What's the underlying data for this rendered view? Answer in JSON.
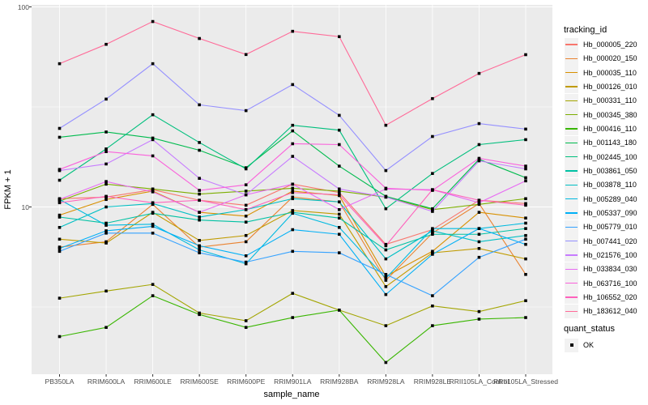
{
  "chart_data": {
    "type": "line",
    "title": "",
    "xlabel": "sample_name",
    "ylabel": "FPKM + 1",
    "y_scale": "log10",
    "ylim": [
      1.45,
      102
    ],
    "y_axis_ticks": [
      "100",
      "10"
    ],
    "grid": true,
    "panel_bg": "#EBEBEB",
    "gridline_color": "#FFFFFF",
    "point_marker": "black-square",
    "point_color": "#000000",
    "legend_position": "right",
    "categories": [
      "PB350LA",
      "RRIM600LA",
      "RRIM600LE",
      "RRIM600SE",
      "RRIM600PE",
      "RRIM901LA",
      "RRIM928BA",
      "RRIM928LA",
      "RRIM928LE",
      "RRII105LA_Control",
      "RRII105LA_Stressed"
    ],
    "legend": {
      "title": "tracking_id"
    },
    "quant_status": {
      "title": "quant_status",
      "items": [
        {
          "label": "OK",
          "marker": "black-square"
        }
      ]
    },
    "series": [
      {
        "name": "Hb_000005_220",
        "color": "#F8766D",
        "values": [
          11.0,
          11.2,
          12.2,
          10.8,
          10.2,
          13.0,
          11.8,
          6.5,
          7.7,
          10.8,
          10.4
        ]
      },
      {
        "name": "Hb_000020_150",
        "color": "#EA8331",
        "values": [
          6.3,
          6.7,
          10.3,
          6.3,
          6.7,
          11.2,
          10.6,
          4.3,
          7.4,
          10.4,
          4.6
        ]
      },
      {
        "name": "Hb_000035_110",
        "color": "#D89000",
        "values": [
          9.1,
          10.9,
          12.0,
          9.4,
          9.0,
          12.0,
          11.4,
          4.5,
          6.0,
          9.4,
          8.8
        ]
      },
      {
        "name": "Hb_000126_010",
        "color": "#C09B00",
        "values": [
          6.9,
          6.6,
          9.4,
          6.8,
          7.2,
          9.6,
          9.2,
          4.0,
          5.9,
          6.2,
          5.5
        ]
      },
      {
        "name": "Hb_000331_110",
        "color": "#A3A500",
        "values": [
          3.5,
          3.8,
          4.1,
          2.95,
          2.7,
          3.7,
          3.05,
          2.55,
          3.2,
          3.0,
          3.4
        ]
      },
      {
        "name": "Hb_000345_380",
        "color": "#7CAE00",
        "values": [
          10.7,
          13.0,
          12.3,
          11.6,
          12.0,
          12.4,
          12.0,
          11.2,
          9.7,
          10.3,
          11.0
        ]
      },
      {
        "name": "Hb_000416_110",
        "color": "#39B600",
        "values": [
          2.25,
          2.5,
          3.6,
          2.9,
          2.5,
          2.8,
          3.05,
          1.67,
          2.55,
          2.75,
          2.8
        ]
      },
      {
        "name": "Hb_001143_180",
        "color": "#00BB4E",
        "values": [
          22.3,
          23.7,
          22.1,
          19.2,
          15.7,
          24.0,
          16.0,
          11.3,
          9.8,
          17.3,
          14.0
        ]
      },
      {
        "name": "Hb_002445_100",
        "color": "#00BF7D",
        "values": [
          13.6,
          19.5,
          28.9,
          21.0,
          15.5,
          25.6,
          24.2,
          9.8,
          14.7,
          20.5,
          21.7
        ]
      },
      {
        "name": "Hb_003861_050",
        "color": "#00C1A3",
        "values": [
          8.9,
          8.3,
          9.3,
          8.6,
          8.4,
          9.4,
          8.8,
          6.1,
          7.3,
          7.3,
          7.8
        ]
      },
      {
        "name": "Hb_003878_110",
        "color": "#00BFC4",
        "values": [
          7.9,
          10.0,
          10.4,
          8.9,
          9.7,
          11.0,
          10.6,
          5.5,
          7.6,
          6.7,
          7.2
        ]
      },
      {
        "name": "Hb_005289_040",
        "color": "#00BAE0",
        "values": [
          10.9,
          8.1,
          8.2,
          6.1,
          5.2,
          9.3,
          7.9,
          4.4,
          7.8,
          7.8,
          8.3
        ]
      },
      {
        "name": "Hb_005337_090",
        "color": "#00B0F6",
        "values": [
          6.2,
          7.6,
          8.0,
          6.4,
          5.7,
          7.7,
          7.3,
          3.65,
          5.8,
          7.8,
          6.5
        ]
      },
      {
        "name": "Hb_005779_010",
        "color": "#35A2FF",
        "values": [
          6.0,
          7.4,
          7.4,
          5.9,
          5.3,
          6.0,
          5.9,
          4.6,
          3.6,
          5.6,
          6.9
        ]
      },
      {
        "name": "Hb_007441_020",
        "color": "#9590FF",
        "values": [
          24.7,
          34.6,
          52.0,
          32.4,
          30.3,
          40.9,
          28.7,
          15.2,
          22.5,
          26.1,
          24.5
        ]
      },
      {
        "name": "Hb_021576_100",
        "color": "#C77CFF",
        "values": [
          15.2,
          16.4,
          21.7,
          13.9,
          11.5,
          17.9,
          12.3,
          11.2,
          9.5,
          17.0,
          15.5
        ]
      },
      {
        "name": "Hb_033834_030",
        "color": "#E76BF3",
        "values": [
          10.9,
          13.4,
          11.9,
          9.4,
          11.5,
          13.0,
          9.7,
          12.3,
          12.2,
          10.5,
          13.5
        ]
      },
      {
        "name": "Hb_063716_100",
        "color": "#FA62DB",
        "values": [
          15.4,
          18.9,
          18.0,
          12.1,
          12.9,
          20.7,
          20.5,
          12.4,
          12.1,
          17.5,
          16.0
        ]
      },
      {
        "name": "Hb_106552_020",
        "color": "#FF62BC",
        "values": [
          10.5,
          11.3,
          10.5,
          10.8,
          9.7,
          11.8,
          11.5,
          6.4,
          12.2,
          10.8,
          10.2
        ]
      },
      {
        "name": "Hb_183612_040",
        "color": "#FF6A98",
        "values": [
          52.0,
          65.0,
          84.5,
          69.5,
          57.8,
          75.5,
          71.0,
          25.6,
          34.8,
          46.5,
          57.7
        ]
      }
    ]
  }
}
